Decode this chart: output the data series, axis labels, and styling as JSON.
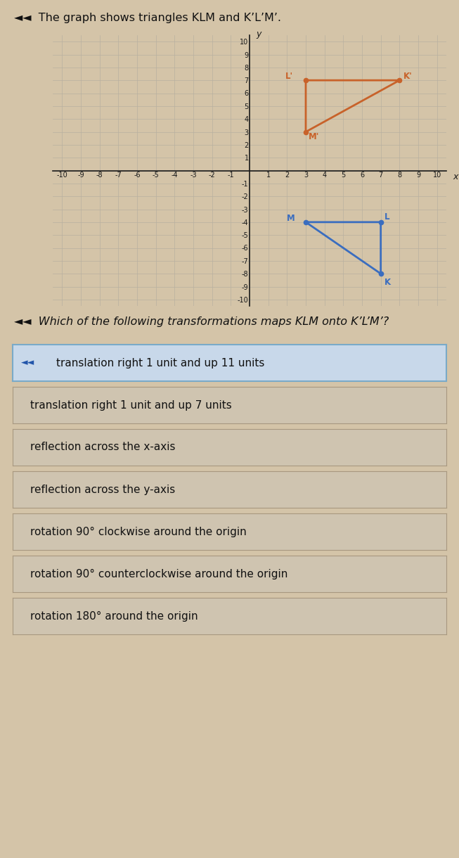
{
  "title": "The graph shows triangles KLM and K’L’M’.",
  "triangle_KLM": {
    "K": [
      7,
      -8
    ],
    "L": [
      7,
      -4
    ],
    "M": [
      3,
      -4
    ],
    "color": "#3a6dbf",
    "linewidth": 2.0
  },
  "triangle_KpLpMp": {
    "Kp": [
      8,
      7
    ],
    "Lp": [
      3,
      7
    ],
    "Mp": [
      3,
      3
    ],
    "color": "#c8622a",
    "linewidth": 2.0
  },
  "xlim": [
    -10.5,
    10.5
  ],
  "ylim": [
    -10.5,
    10.5
  ],
  "xticks": [
    -10,
    -9,
    -8,
    -7,
    -6,
    -5,
    -4,
    -3,
    -2,
    -1,
    0,
    1,
    2,
    3,
    4,
    5,
    6,
    7,
    8,
    9,
    10
  ],
  "yticks": [
    -10,
    -9,
    -8,
    -7,
    -6,
    -5,
    -4,
    -3,
    -2,
    -1,
    0,
    1,
    2,
    3,
    4,
    5,
    6,
    7,
    8,
    9,
    10
  ],
  "grid_color": "#b8b0a0",
  "bg_color": "#d4c4a8",
  "axis_color": "#1a1a1a",
  "question_text": "Which of the following transformations maps KLM onto K’L’M’?",
  "options": [
    "translation right 1 unit and up 11 units",
    "translation right 1 unit and up 7 units",
    "reflection across the x-axis",
    "reflection across the y-axis",
    "rotation 90° clockwise around the origin",
    "rotation 90° counterclockwise around the origin",
    "rotation 180° around the origin"
  ],
  "selected_option": 0,
  "selected_bg": "#c8d8ea",
  "selected_border": "#7aaac8",
  "option_bg": "#cfc4b0",
  "option_border": "#a89880",
  "speaker_color": "#2255aa",
  "header_color": "#111111",
  "header_fontsize": 11.5,
  "question_fontsize": 11.5,
  "option_fontsize": 11.0
}
